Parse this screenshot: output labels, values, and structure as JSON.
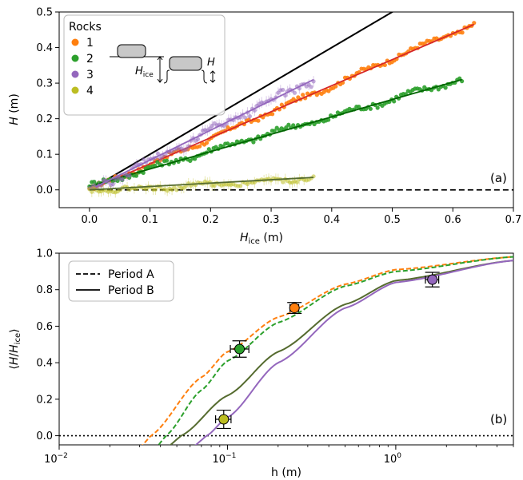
{
  "chart_data": [
    {
      "panel": "(a)",
      "type": "scatter",
      "xlabel_main": "H",
      "xlabel_sub": "ice",
      "xlabel_unit": " (m)",
      "ylabel_main": "H",
      "ylabel_unit": " (m)",
      "xlim": [
        -0.05,
        0.7
      ],
      "ylim": [
        -0.05,
        0.5
      ],
      "xticks": [
        0.0,
        0.1,
        0.2,
        0.3,
        0.4,
        0.5,
        0.6,
        0.7
      ],
      "xtick_labels": [
        "0.0",
        "0.1",
        "0.2",
        "0.3",
        "0.4",
        "0.5",
        "0.6",
        "0.7"
      ],
      "yticks": [
        0.0,
        0.1,
        0.2,
        0.3,
        0.4,
        0.5
      ],
      "ytick_labels": [
        "0.0",
        "0.1",
        "0.2",
        "0.3",
        "0.4",
        "0.5"
      ],
      "grid": false,
      "legend_title": "Rocks",
      "legend_position": "top-left",
      "inset_labels": {
        "hice_main": "H",
        "hice_sub": "ice",
        "h": "H"
      },
      "reference_lines": [
        {
          "kind": "identity",
          "slope": 1.0,
          "color": "#000000",
          "style": "solid"
        },
        {
          "kind": "zero",
          "y": 0.0,
          "color": "#000000",
          "style": "dashed"
        }
      ],
      "series": [
        {
          "name": "1",
          "color": "#ff7f0e",
          "fit_color": "#d62728",
          "x_range": [
            0.0,
            0.635
          ],
          "slope": 0.72,
          "noise": 0.006,
          "points": [
            [
              0.0,
              0.0
            ],
            [
              0.1,
              0.072
            ],
            [
              0.2,
              0.144
            ],
            [
              0.3,
              0.22
            ],
            [
              0.4,
              0.292
            ],
            [
              0.5,
              0.37
            ],
            [
              0.6,
              0.44
            ],
            [
              0.635,
              0.465
            ]
          ]
        },
        {
          "name": "2",
          "color": "#2ca02c",
          "fit_color": "#006400",
          "x_range": [
            0.0,
            0.615
          ],
          "slope": 0.49,
          "noise": 0.007,
          "points": [
            [
              0.0,
              0.01
            ],
            [
              0.1,
              0.06
            ],
            [
              0.2,
              0.11
            ],
            [
              0.3,
              0.16
            ],
            [
              0.4,
              0.205
            ],
            [
              0.5,
              0.255
            ],
            [
              0.6,
              0.305
            ],
            [
              0.615,
              0.31
            ]
          ]
        },
        {
          "name": "3",
          "color": "#9467bd",
          "fit_color": "#9467bd",
          "x_range": [
            0.0,
            0.37
          ],
          "slope": 0.83,
          "noise": 0.01,
          "points": [
            [
              0.0,
              0.0
            ],
            [
              0.1,
              0.08
            ],
            [
              0.2,
              0.165
            ],
            [
              0.3,
              0.25
            ],
            [
              0.37,
              0.31
            ]
          ]
        },
        {
          "name": "4",
          "color": "#bcbd22",
          "fit_color": "#556b2f",
          "x_range": [
            0.0,
            0.37
          ],
          "slope": 0.085,
          "noise": 0.006,
          "points": [
            [
              0.0,
              0.0
            ],
            [
              0.1,
              0.005
            ],
            [
              0.2,
              0.015
            ],
            [
              0.3,
              0.025
            ],
            [
              0.37,
              0.035
            ]
          ]
        }
      ]
    },
    {
      "panel": "(b)",
      "type": "scatter",
      "xlabel": "h (m)",
      "ylabel_open": "⟨",
      "ylabel_main": "H",
      "ylabel_slash": "/",
      "ylabel_main2": "H",
      "ylabel_sub": "ice",
      "ylabel_close": "⟩",
      "xscale": "log",
      "xlim": [
        0.01,
        5.0
      ],
      "ylim": [
        -0.05,
        1.0
      ],
      "xticks": [
        0.01,
        0.1,
        1.0
      ],
      "xtick_base": [
        "10",
        "10",
        "10"
      ],
      "xtick_exp": [
        "−2",
        "−1",
        "0"
      ],
      "yticks": [
        0.0,
        0.2,
        0.4,
        0.6,
        0.8,
        1.0
      ],
      "ytick_labels": [
        "0.0",
        "0.2",
        "0.4",
        "0.6",
        "0.8",
        "1.0"
      ],
      "grid": false,
      "legend_position": "top-left",
      "legend": [
        {
          "label": "Period A",
          "style": "dashed"
        },
        {
          "label": "Period B",
          "style": "solid"
        }
      ],
      "reference_lines": [
        {
          "kind": "zero",
          "y": 0.0,
          "color": "#000000",
          "style": "dotted"
        }
      ],
      "curves": [
        {
          "rock": "1",
          "period": "A",
          "color": "#ff7f0e",
          "style": "dashed",
          "h0": 0.035,
          "points": [
            [
              0.035,
              0.0
            ],
            [
              0.07,
              0.32
            ],
            [
              0.1,
              0.46
            ],
            [
              0.2,
              0.65
            ],
            [
              0.5,
              0.83
            ],
            [
              1.0,
              0.91
            ],
            [
              5.0,
              0.98
            ]
          ]
        },
        {
          "rock": "2",
          "period": "A",
          "color": "#2ca02c",
          "style": "dashed",
          "h0": 0.043,
          "points": [
            [
              0.043,
              0.0
            ],
            [
              0.07,
              0.25
            ],
            [
              0.1,
              0.41
            ],
            [
              0.2,
              0.62
            ],
            [
              0.5,
              0.82
            ],
            [
              1.0,
              0.9
            ],
            [
              5.0,
              0.98
            ]
          ]
        },
        {
          "rock": "4",
          "period": "B",
          "color": "#556b2f",
          "style": "solid",
          "h0": 0.053,
          "points": [
            [
              0.053,
              0.0
            ],
            [
              0.1,
              0.22
            ],
            [
              0.2,
              0.46
            ],
            [
              0.5,
              0.72
            ],
            [
              1.0,
              0.85
            ],
            [
              5.0,
              0.96
            ]
          ]
        },
        {
          "rock": "3",
          "period": "B",
          "color": "#9467bd",
          "style": "solid",
          "h0": 0.075,
          "points": [
            [
              0.075,
              0.0
            ],
            [
              0.1,
              0.1
            ],
            [
              0.2,
              0.4
            ],
            [
              0.5,
              0.7
            ],
            [
              1.0,
              0.84
            ],
            [
              5.0,
              0.96
            ]
          ]
        }
      ],
      "points": [
        {
          "rock": "1",
          "color": "#ff7f0e",
          "h": 0.25,
          "value": 0.7,
          "xerr": [
            0.235,
            0.265
          ],
          "yerr": 0.03
        },
        {
          "rock": "2",
          "color": "#2ca02c",
          "h": 0.118,
          "value": 0.475,
          "xerr": [
            0.104,
            0.134
          ],
          "yerr": 0.045
        },
        {
          "rock": "3",
          "color": "#9467bd",
          "h": 1.65,
          "value": 0.855,
          "xerr": [
            1.5,
            1.8
          ],
          "yerr": 0.04
        },
        {
          "rock": "4",
          "color": "#bcbd22",
          "h": 0.095,
          "value": 0.09,
          "xerr": [
            0.085,
            0.105
          ],
          "yerr": 0.05
        }
      ]
    }
  ]
}
